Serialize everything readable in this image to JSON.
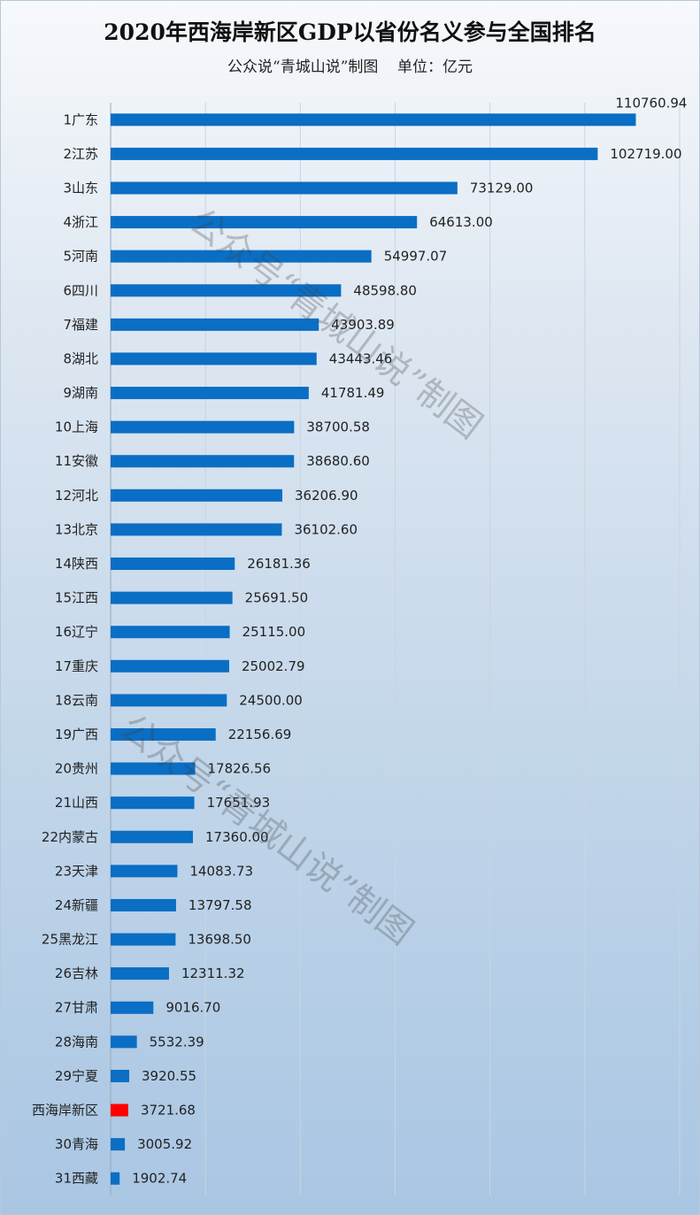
{
  "chart_data": {
    "type": "bar",
    "orientation": "horizontal",
    "title": "2020年西海岸新区GDP以省份名义参与全国排名",
    "subtitle": "公众说“青城山说”制图    单位：亿元",
    "categories": [
      "1广东",
      "2江苏",
      "3山东",
      "4浙江",
      "5河南",
      "6四川",
      "7福建",
      "8湖北",
      "9湖南",
      "10上海",
      "11安徽",
      "12河北",
      "13北京",
      "14陕西",
      "15江西",
      "16辽宁",
      "17重庆",
      "18云南",
      "19广西",
      "20贵州",
      "21山西",
      "22内蒙古",
      "23天津",
      "24新疆",
      "25黑龙江",
      "26吉林",
      "27甘肃",
      "28海南",
      "29宁夏",
      "西海岸新区",
      "30青海",
      "31西藏"
    ],
    "values": [
      110760.94,
      102719.0,
      73129.0,
      64613.0,
      54997.07,
      48598.8,
      43903.89,
      43443.46,
      41781.49,
      38700.58,
      38680.6,
      36206.9,
      36102.6,
      26181.36,
      25691.5,
      25115.0,
      25002.79,
      24500.0,
      22156.69,
      17826.56,
      17651.93,
      17360.0,
      14083.73,
      13797.58,
      13698.5,
      12311.32,
      9016.7,
      5532.39,
      3920.55,
      3721.68,
      3005.92,
      1902.74
    ],
    "value_labels": [
      "110760.94",
      "102719.00",
      "73129.00",
      "64613.00",
      "54997.07",
      "48598.80",
      "43903.89",
      "43443.46",
      "41781.49",
      "38700.58",
      "38680.60",
      "36206.90",
      "36102.60",
      "26181.36",
      "25691.50",
      "25115.00",
      "25002.79",
      "24500.00",
      "22156.69",
      "17826.56",
      "17651.93",
      "17360.00",
      "14083.73",
      "13797.58",
      "13698.50",
      "12311.32",
      "9016.70",
      "5532.39",
      "3920.55",
      "3721.68",
      "3005.92",
      "1902.74"
    ],
    "xlim": [
      0,
      120000
    ],
    "grid": true,
    "legend": "none",
    "highlight_category": "西海岸新区",
    "colors": {
      "bar": "#0a6ec4",
      "highlight": "#ff0000",
      "grid": "#c9d4df"
    }
  },
  "watermark": "公众号“青城山说”制图"
}
